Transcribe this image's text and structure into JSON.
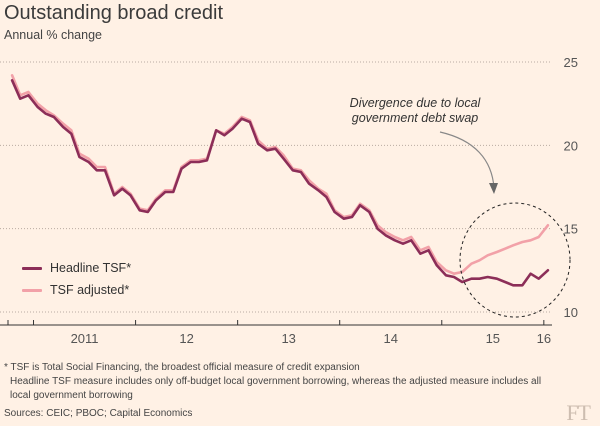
{
  "title": "Outstanding broad credit",
  "subtitle": "Annual % change",
  "footnotes": [
    "* TSF is Total Social Financing, the broadest official measure of credit expansion",
    "Headline TSF measure includes only off-budget local government borrowing, whereas the adjusted measure includes all",
    "local government borrowing"
  ],
  "source": "Sources: CEIC; PBOC; Capital Economics",
  "logo": "FT",
  "annotation": {
    "line1": "Divergence due to local",
    "line2": "government debt swap"
  },
  "colors": {
    "background": "#fff1e5",
    "headline": "#8c2e58",
    "adjusted": "#f2a1a8"
  },
  "chart_data": {
    "type": "line",
    "title": "Outstanding broad credit",
    "ylabel": "Annual % change",
    "ylim": [
      10,
      25
    ],
    "yticks": [
      10,
      15,
      20,
      25
    ],
    "xlim": [
      2010.75,
      2016.08
    ],
    "xticks": [
      {
        "label": "2011",
        "at": 2011.5
      },
      {
        "label": "12",
        "at": 2012.5
      },
      {
        "label": "13",
        "at": 2013.5
      },
      {
        "label": "14",
        "at": 2014.5
      },
      {
        "label": "15",
        "at": 2015.5
      },
      {
        "label": "16",
        "at": 2016.0
      }
    ],
    "grid": true,
    "legend": "left",
    "series": [
      {
        "name": "Headline TSF*",
        "color": "#8c2e58",
        "x": [
          2010.79,
          2010.87,
          2010.95,
          2011.04,
          2011.12,
          2011.2,
          2011.29,
          2011.37,
          2011.45,
          2011.54,
          2011.62,
          2011.7,
          2011.79,
          2011.87,
          2011.95,
          2012.04,
          2012.12,
          2012.2,
          2012.29,
          2012.37,
          2012.45,
          2012.54,
          2012.62,
          2012.7,
          2012.79,
          2012.87,
          2012.95,
          2013.04,
          2013.12,
          2013.2,
          2013.29,
          2013.37,
          2013.45,
          2013.54,
          2013.62,
          2013.7,
          2013.79,
          2013.87,
          2013.95,
          2014.04,
          2014.12,
          2014.2,
          2014.29,
          2014.37,
          2014.45,
          2014.54,
          2014.62,
          2014.7,
          2014.79,
          2014.87,
          2014.95,
          2015.04,
          2015.12,
          2015.2,
          2015.29,
          2015.37,
          2015.45,
          2015.54,
          2015.62,
          2015.7,
          2015.79,
          2015.87,
          2015.95,
          2016.04
        ],
        "values": [
          23.9,
          22.8,
          23.0,
          22.3,
          21.9,
          21.7,
          21.1,
          20.7,
          19.3,
          19.0,
          18.5,
          18.5,
          17.0,
          17.4,
          17.0,
          16.1,
          16.0,
          16.7,
          17.2,
          17.2,
          18.6,
          19.0,
          19.0,
          19.1,
          20.9,
          20.6,
          21.0,
          21.6,
          21.4,
          20.1,
          19.7,
          19.8,
          19.2,
          18.5,
          18.4,
          17.7,
          17.3,
          16.9,
          16.0,
          15.6,
          15.7,
          16.4,
          16.0,
          15.0,
          14.6,
          14.3,
          14.1,
          14.3,
          13.5,
          13.7,
          12.8,
          12.2,
          12.1,
          11.8,
          12.0,
          12.0,
          12.1,
          12.0,
          11.8,
          11.6,
          11.6,
          12.3,
          12.0,
          12.5
        ]
      },
      {
        "name": "TSF adjusted*",
        "color": "#f2a1a8",
        "x": [
          2010.79,
          2010.87,
          2010.95,
          2011.04,
          2011.12,
          2011.2,
          2011.29,
          2011.37,
          2011.45,
          2011.54,
          2011.62,
          2011.7,
          2011.79,
          2011.87,
          2011.95,
          2012.04,
          2012.12,
          2012.2,
          2012.29,
          2012.37,
          2012.45,
          2012.54,
          2012.62,
          2012.7,
          2012.79,
          2012.87,
          2012.95,
          2013.04,
          2013.12,
          2013.2,
          2013.29,
          2013.37,
          2013.45,
          2013.54,
          2013.62,
          2013.7,
          2013.79,
          2013.87,
          2013.95,
          2014.04,
          2014.12,
          2014.2,
          2014.29,
          2014.37,
          2014.45,
          2014.54,
          2014.62,
          2014.7,
          2014.79,
          2014.87,
          2014.95,
          2015.04,
          2015.12,
          2015.2,
          2015.29,
          2015.37,
          2015.45,
          2015.54,
          2015.62,
          2015.7,
          2015.79,
          2015.87,
          2015.95,
          2016.04
        ],
        "values": [
          24.2,
          23.0,
          23.2,
          22.5,
          22.1,
          21.8,
          21.3,
          20.9,
          19.5,
          19.2,
          18.7,
          18.7,
          17.1,
          17.5,
          17.1,
          16.2,
          16.1,
          16.8,
          17.3,
          17.3,
          18.7,
          19.1,
          19.1,
          19.2,
          20.9,
          20.7,
          21.1,
          21.7,
          21.5,
          20.3,
          19.8,
          19.9,
          19.4,
          18.6,
          18.5,
          17.9,
          17.4,
          17.1,
          16.1,
          15.7,
          15.8,
          16.5,
          16.1,
          15.2,
          14.8,
          14.5,
          14.3,
          14.5,
          13.7,
          13.9,
          13.0,
          12.5,
          12.3,
          12.4,
          12.9,
          13.1,
          13.4,
          13.6,
          13.8,
          14.0,
          14.2,
          14.3,
          14.5,
          15.2
        ]
      }
    ]
  }
}
